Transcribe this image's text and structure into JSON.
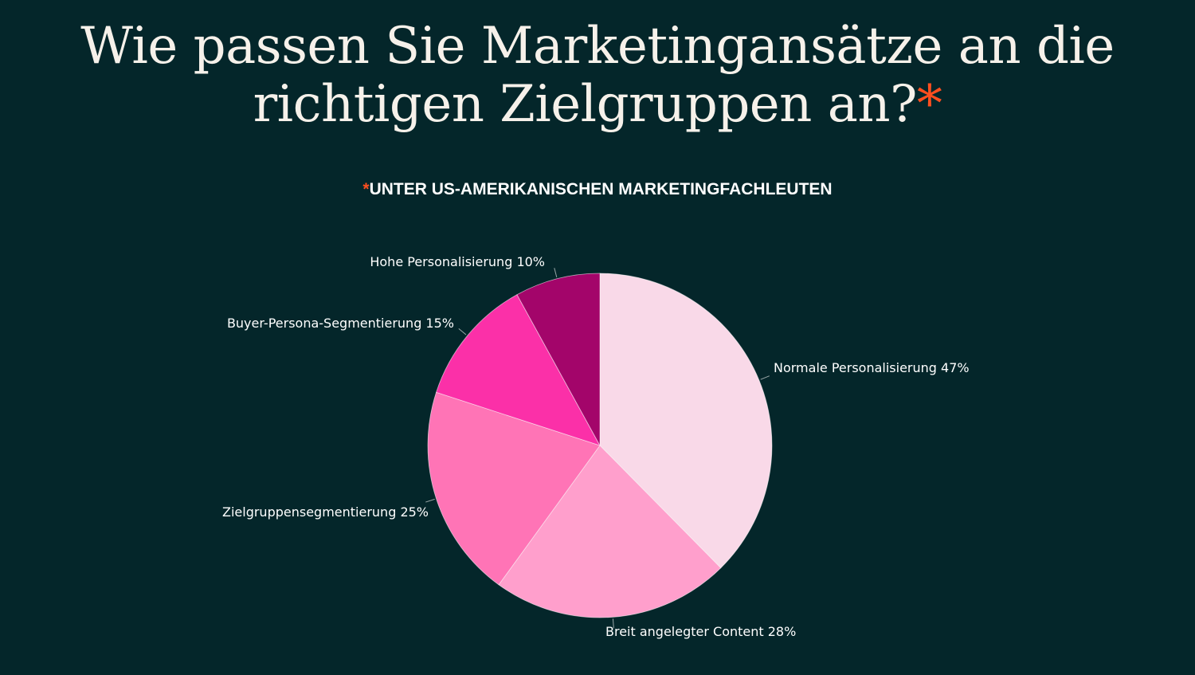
{
  "header": {
    "title_line1": "Wie passen Sie Marketingansätze an die",
    "title_line2": "richtigen Zielgruppen an?",
    "title_asterisk": "*",
    "subtitle_asterisk": "*",
    "subtitle": "UNTER US-AMERIKANISCHEN MARKETINGFACHLEUTEN"
  },
  "chart_data": {
    "type": "pie",
    "title": "Wie passen Sie Marketingansätze an die richtigen Zielgruppen an?",
    "subtitle": "*UNTER US-AMERIKANISCHEN MARKETINGFACHLEUTEN",
    "slices": [
      {
        "label": "Normale Personalisierung 47%",
        "value": 47,
        "color": "#f9d9e8"
      },
      {
        "label": "Breit angelegter Content 28%",
        "value": 28,
        "color": "#ff9fcc"
      },
      {
        "label": "Zielgruppensegmentierung 25%",
        "value": 25,
        "color": "#ff74b6"
      },
      {
        "label": "Buyer-Persona-Segmentierung 15%",
        "value": 15,
        "color": "#fb30a8"
      },
      {
        "label": "Hohe Personalisierung 10%",
        "value": 10,
        "color": "#a3056a"
      }
    ],
    "start_angle": "top",
    "direction": "clockwise",
    "colors": {
      "background": "#04262a",
      "accent": "#ff4f1f"
    }
  }
}
